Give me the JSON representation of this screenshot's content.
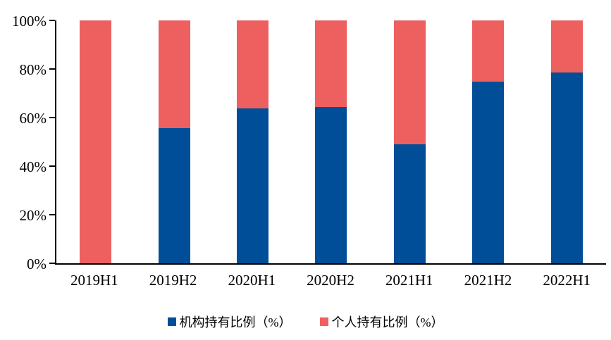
{
  "chart_data": {
    "type": "bar",
    "stacked": true,
    "title": "",
    "xlabel": "",
    "ylabel": "",
    "categories": [
      "2019H1",
      "2019H2",
      "2020H1",
      "2020H2",
      "2021H1",
      "2021H2",
      "2022H1"
    ],
    "series": [
      {
        "name": "机构持有比例（%）",
        "color": "#004E98",
        "values": [
          0,
          55.8,
          63.7,
          64.3,
          49.0,
          74.7,
          78.5
        ]
      },
      {
        "name": "个人持有比例（%）",
        "color": "#EE5F5F",
        "values": [
          100,
          44.2,
          36.3,
          35.7,
          51.0,
          25.3,
          21.5
        ]
      }
    ],
    "ylim": [
      0,
      100
    ],
    "yticks": [
      0,
      20,
      40,
      60,
      80,
      100
    ],
    "ytick_labels": [
      "0%",
      "20%",
      "40%",
      "60%",
      "80%",
      "100%"
    ],
    "grid": false,
    "legend_position": "bottom",
    "axis_color": "#000000",
    "text_color": "#000000",
    "background_color": "#FFFFFF"
  }
}
